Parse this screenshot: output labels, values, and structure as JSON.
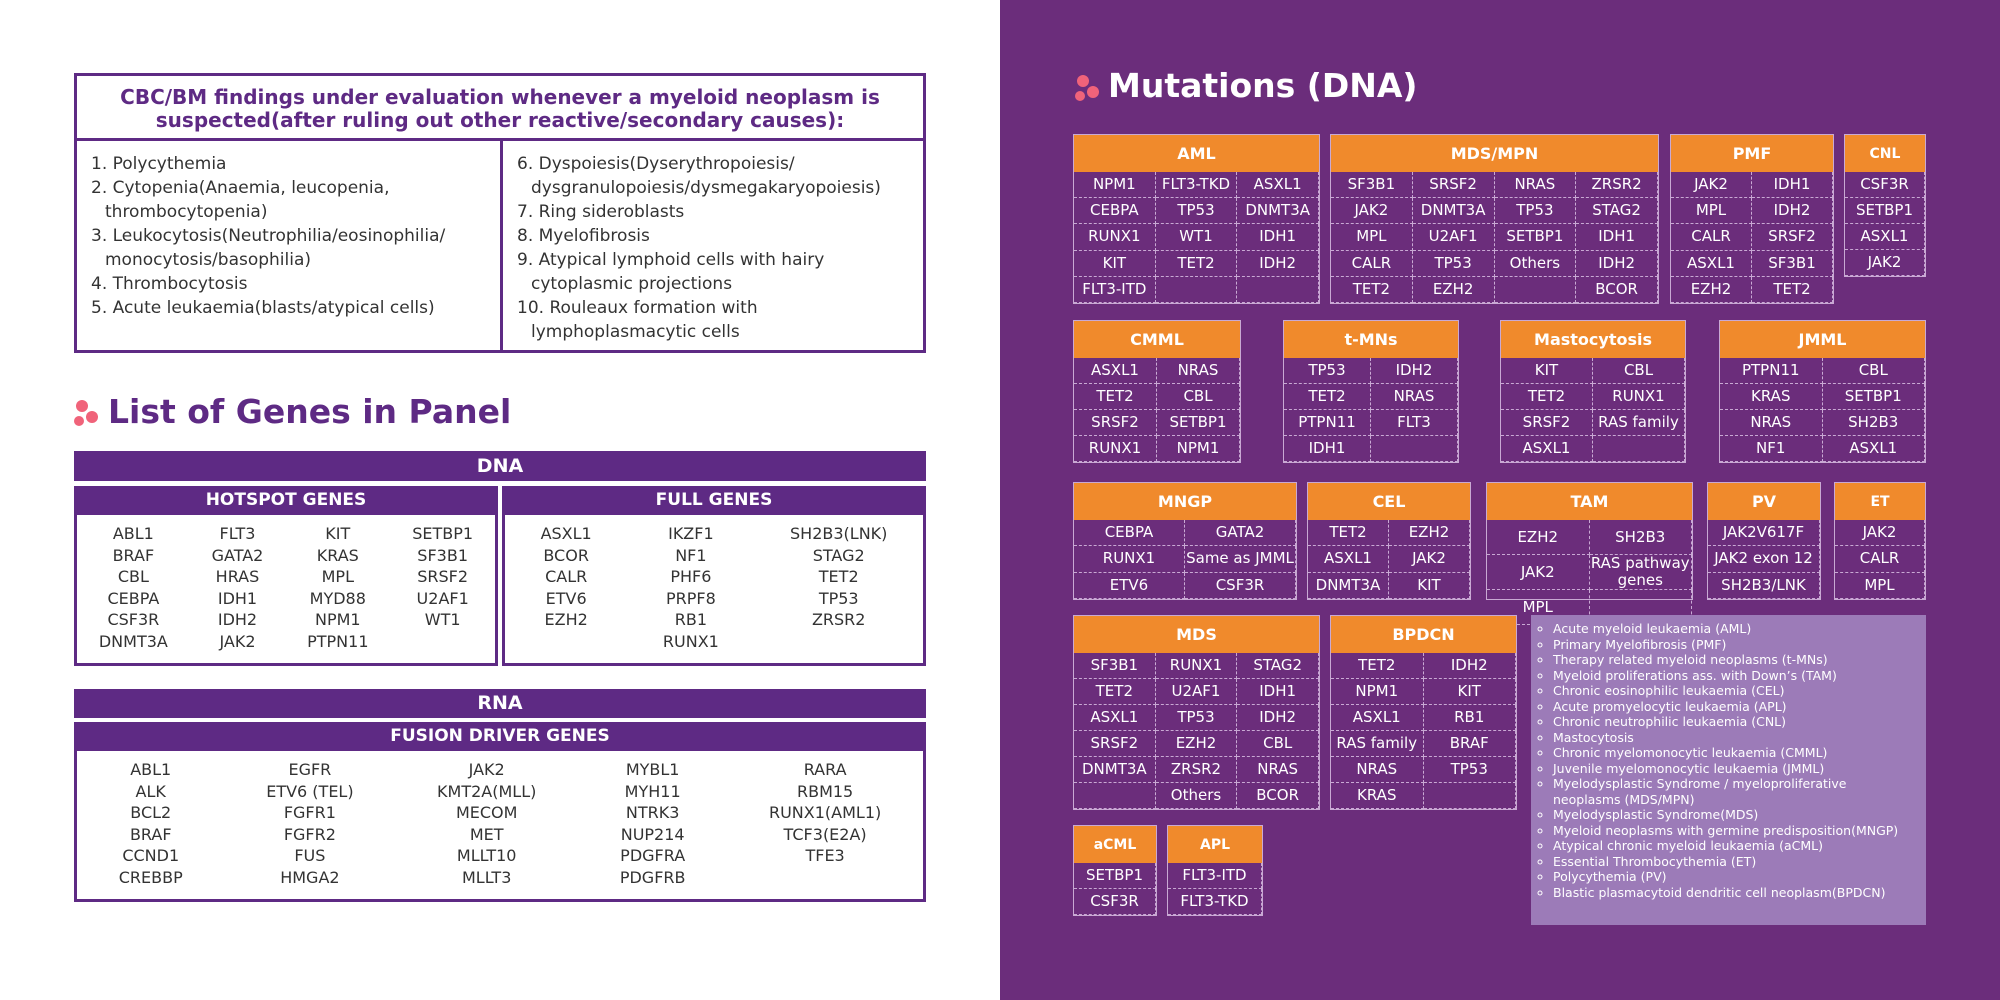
{
  "findings": {
    "title": "CBC/BM findings under evaluation whenever a myeloid neoplasm is suspected(after ruling out other reactive/secondary causes):",
    "items": [
      "1.  Polycythemia",
      "2. Cytopenia(Anaemia, leucopenia, thrombocytopenia)",
      "3. Leukocytosis(Neutrophilia/eosinophilia/ monocytosis/basophilia)",
      "4. Thrombocytosis",
      "5. Acute leukaemia(blasts/atypical cells)",
      "6. Dyspoiesis(Dyserythropoiesis/ dysgranulopoiesis/dysmegakaryopoiesis)",
      "7. Ring sideroblasts",
      "8. Myelofibrosis",
      "9. Atypical lymphoid cells with hairy cytoplasmic projections",
      "10. Rouleaux formation with lymphoplasmacytic cells"
    ]
  },
  "genes_panel": {
    "title": "List of Genes in Panel",
    "dna": {
      "label": "DNA",
      "hotspot": {
        "title": "HOTSPOT GENES",
        "columns": [
          [
            "ABL1",
            "BRAF",
            "CBL",
            "CEBPA",
            "CSF3R",
            "DNMT3A"
          ],
          [
            "FLT3",
            "GATA2",
            "HRAS",
            "IDH1",
            "IDH2",
            "JAK2"
          ],
          [
            "KIT",
            "KRAS",
            "MPL",
            "MYD88",
            "NPM1",
            "PTPN11"
          ],
          [
            "SETBP1",
            "SF3B1",
            "SRSF2",
            "U2AF1",
            "WT1"
          ]
        ]
      },
      "full": {
        "title": "FULL GENES",
        "columns": [
          [
            "ASXL1",
            "BCOR",
            "CALR",
            "ETV6",
            "EZH2"
          ],
          [
            "IKZF1",
            "NF1",
            "PHF6",
            "PRPF8",
            "RB1",
            "RUNX1"
          ],
          [
            "SH2B3(LNK)",
            "STAG2",
            "TET2",
            "TP53",
            "ZRSR2"
          ]
        ]
      }
    },
    "rna": {
      "label": "RNA",
      "fusion": {
        "title": "FUSION DRIVER GENES",
        "columns": [
          [
            "ABL1",
            "ALK",
            "BCL2",
            "BRAF",
            "CCND1",
            "CREBBP"
          ],
          [
            "EGFR",
            "ETV6 (TEL)",
            "FGFR1",
            "FGFR2",
            "FUS",
            "HMGA2"
          ],
          [
            "JAK2",
            "KMT2A(MLL)",
            "MECOM",
            "MET",
            "MLLT10",
            "MLLT3"
          ],
          [
            "MYBL1",
            "MYH11",
            "NTRK3",
            "NUP214",
            "PDGFRA",
            "PDGFRB"
          ],
          [
            "RARA",
            "RBM15",
            "RUNX1(AML1)",
            "TCF3(E2A)",
            "TFE3"
          ]
        ]
      }
    }
  },
  "mutations": {
    "title": "Mutations (DNA)",
    "tables": [
      {
        "title": "AML",
        "rows": [
          [
            "NPM1",
            "FLT3-TKD",
            "ASXL1"
          ],
          [
            "CEBPA",
            "TP53",
            "DNMT3A"
          ],
          [
            "RUNX1",
            "WT1",
            "IDH1"
          ],
          [
            "KIT",
            "TET2",
            "IDH2"
          ],
          [
            "FLT3-ITD",
            null,
            null
          ]
        ]
      },
      {
        "title": "MDS/MPN",
        "rows": [
          [
            "SF3B1",
            "SRSF2",
            "NRAS",
            "ZRSR2"
          ],
          [
            "JAK2",
            "DNMT3A",
            "TP53",
            "STAG2"
          ],
          [
            "MPL",
            "U2AF1",
            "SETBP1",
            "IDH1"
          ],
          [
            "CALR",
            "TP53",
            "Others",
            "IDH2"
          ],
          [
            "TET2",
            "EZH2",
            null,
            "BCOR"
          ]
        ]
      },
      {
        "title": "PMF",
        "rows": [
          [
            "JAK2",
            "IDH1"
          ],
          [
            "MPL",
            "IDH2"
          ],
          [
            "CALR",
            "SRSF2"
          ],
          [
            "ASXL1",
            "SF3B1"
          ],
          [
            "EZH2",
            "TET2"
          ]
        ]
      },
      {
        "title": "CNL",
        "rows": [
          [
            "CSF3R"
          ],
          [
            "SETBP1"
          ],
          [
            "ASXL1"
          ],
          [
            "JAK2"
          ]
        ]
      },
      {
        "title": "CMML",
        "rows": [
          [
            "ASXL1",
            "NRAS"
          ],
          [
            "TET2",
            "CBL"
          ],
          [
            "SRSF2",
            "SETBP1"
          ],
          [
            "RUNX1",
            "NPM1"
          ]
        ]
      },
      {
        "title": "t-MNs",
        "rows": [
          [
            "TP53",
            "IDH2"
          ],
          [
            "TET2",
            "NRAS"
          ],
          [
            "PTPN11",
            "FLT3"
          ],
          [
            "IDH1",
            null
          ]
        ]
      },
      {
        "title": "Mastocytosis",
        "rows": [
          [
            "KIT",
            "CBL"
          ],
          [
            "TET2",
            "RUNX1"
          ],
          [
            "SRSF2",
            "RAS family"
          ],
          [
            "ASXL1",
            null
          ]
        ]
      },
      {
        "title": "JMML",
        "rows": [
          [
            "PTPN11",
            "CBL"
          ],
          [
            "KRAS",
            "SETBP1"
          ],
          [
            "NRAS",
            "SH2B3"
          ],
          [
            "NF1",
            "ASXL1"
          ]
        ]
      },
      {
        "title": "MNGP",
        "rows": [
          [
            "CEBPA",
            "GATA2"
          ],
          [
            "RUNX1",
            "Same as JMML"
          ],
          [
            "ETV6",
            "CSF3R"
          ]
        ]
      },
      {
        "title": "CEL",
        "rows": [
          [
            "TET2",
            "EZH2"
          ],
          [
            "ASXL1",
            "JAK2"
          ],
          [
            "DNMT3A",
            "KIT"
          ]
        ]
      },
      {
        "title": "TAM",
        "rows": [
          [
            "EZH2",
            "SH2B3"
          ],
          [
            "JAK2",
            "RAS pathway genes"
          ],
          [
            "MPL",
            null
          ]
        ]
      },
      {
        "title": "PV",
        "rows": [
          [
            "JAK2V617F"
          ],
          [
            "JAK2 exon 12"
          ],
          [
            "SH2B3/LNK"
          ]
        ]
      },
      {
        "title": "ET",
        "rows": [
          [
            "JAK2"
          ],
          [
            "CALR"
          ],
          [
            "MPL"
          ]
        ]
      },
      {
        "title": "MDS",
        "rows": [
          [
            "SF3B1",
            "RUNX1",
            "STAG2"
          ],
          [
            "TET2",
            "U2AF1",
            "IDH1"
          ],
          [
            "ASXL1",
            "TP53",
            "IDH2"
          ],
          [
            "SRSF2",
            "EZH2",
            "CBL"
          ],
          [
            "DNMT3A",
            "ZRSR2",
            "NRAS"
          ],
          [
            null,
            "Others",
            "BCOR"
          ]
        ]
      },
      {
        "title": "BPDCN",
        "rows": [
          [
            "TET2",
            "IDH2"
          ],
          [
            "NPM1",
            "KIT"
          ],
          [
            "ASXL1",
            "RB1"
          ],
          [
            "RAS family",
            "BRAF"
          ],
          [
            "NRAS",
            "TP53"
          ],
          [
            "KRAS",
            null
          ]
        ]
      },
      {
        "title": "aCML",
        "rows": [
          [
            "SETBP1"
          ],
          [
            "CSF3R"
          ]
        ]
      },
      {
        "title": "APL",
        "rows": [
          [
            "FLT3-ITD"
          ],
          [
            "FLT3-TKD"
          ]
        ]
      }
    ],
    "legend": [
      "Acute myeloid leukaemia (AML)",
      "Primary Myelofibrosis (PMF)",
      "Therapy related myeloid neoplasms (t-MNs)",
      "Myeloid proliferations ass. with Down’s (TAM)",
      "Chronic eosinophilic leukaemia (CEL)",
      "Acute promyelocytic leukaemia (APL)",
      "Chronic neutrophilic leukaemia (CNL)",
      "Mastocytosis",
      "Chronic myelomonocytic  leukaemia (CMML)",
      "Juvenile myelomonocytic leukaemia (JMML)",
      "Myelodysplastic Syndrome / myeloproliferative neoplasms (MDS/MPN)",
      "Myelodysplastic Syndrome(MDS)",
      "Myeloid neoplasms with germine predisposition(MNGP)",
      "Atypical chronic myeloid leukaemia (aCML)",
      "Essential Thrombocythemia (ET)",
      "Polycythemia (PV)",
      "Blastic plasmacytoid dendritic cell neoplasm(BPDCN)"
    ]
  }
}
